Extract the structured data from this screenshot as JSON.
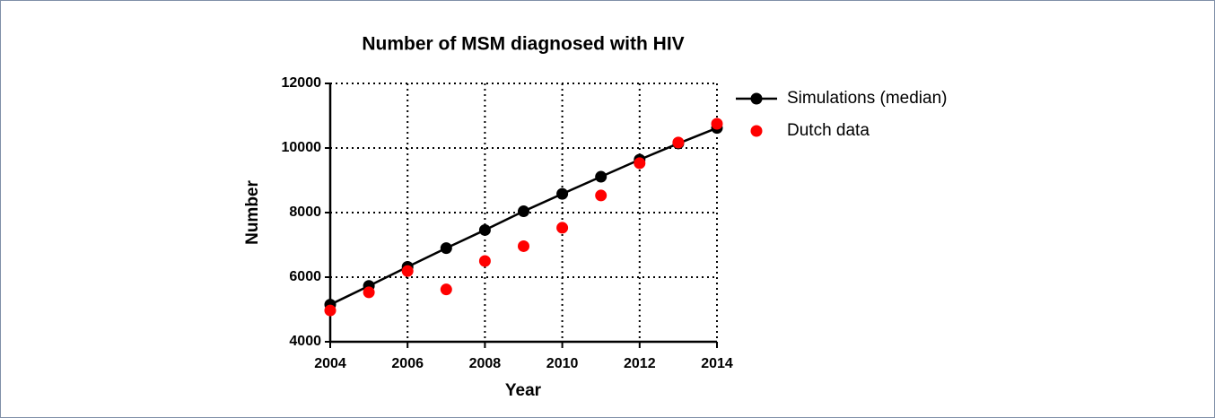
{
  "chart_data": {
    "type": "line",
    "title": "Number of MSM diagnosed with HIV",
    "x_label": "Year",
    "y_label": "Number",
    "x": [
      2004,
      2005,
      2006,
      2007,
      2008,
      2009,
      2010,
      2011,
      2012,
      2013,
      2014
    ],
    "series": [
      {
        "name": "Simulations (median)",
        "color": "#000000",
        "style": "line+markers",
        "values": [
          5150,
          5730,
          6320,
          6900,
          7460,
          8040,
          8580,
          9110,
          9640,
          10140,
          10620
        ]
      },
      {
        "name": "Dutch data",
        "color": "#ff0000",
        "style": "markers",
        "values": [
          4970,
          5530,
          6190,
          5620,
          6500,
          6960,
          7530,
          8530,
          9530,
          10170,
          10750
        ]
      }
    ],
    "xlim": [
      2004,
      2014
    ],
    "xticks": [
      2004,
      2006,
      2008,
      2010,
      2012,
      2014
    ],
    "ylim": [
      4000,
      12000
    ],
    "yticks": [
      4000,
      6000,
      8000,
      10000,
      12000
    ],
    "grid": true,
    "legend": "right"
  }
}
